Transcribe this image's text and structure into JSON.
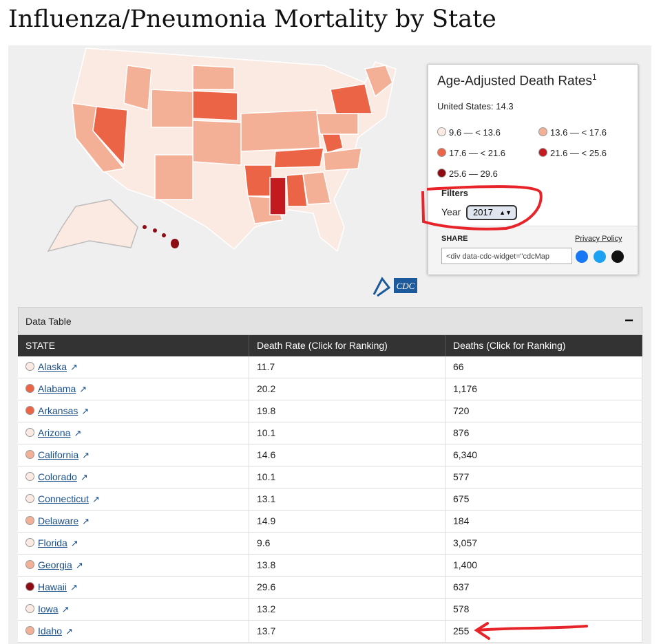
{
  "header": {
    "title": "Influenza/Pneumonia Mortality by State"
  },
  "legend": {
    "title": "Age-Adjusted Death Rates",
    "footnote": "1",
    "national": "United States: 14.3",
    "items": [
      {
        "label": "9.6 — < 13.6",
        "color": "#fbeae2"
      },
      {
        "label": "13.6 — < 17.6",
        "color": "#f3b096"
      },
      {
        "label": "17.6 — < 21.6",
        "color": "#ec6446"
      },
      {
        "label": "21.6 — < 25.6",
        "color": "#c21a1f"
      },
      {
        "label": "25.6 — 29.6",
        "color": "#8d0c14"
      }
    ]
  },
  "filters": {
    "title": "Filters",
    "year_label": "Year",
    "year": "2017"
  },
  "share": {
    "title": "SHARE",
    "privacy": "Privacy Policy",
    "embed": "<div data-cdc-widget=\"cdcMap"
  },
  "table": {
    "title": "Data Table",
    "toggle": "−",
    "columns": [
      "STATE",
      "Death Rate (Click for Ranking)",
      "Deaths (Click for Ranking)"
    ],
    "rows": [
      {
        "state": "Alaska",
        "rate": "11.7",
        "deaths": "66",
        "dot": "#fbeae2"
      },
      {
        "state": "Alabama",
        "rate": "20.2",
        "deaths": "1,176",
        "dot": "#ec6446"
      },
      {
        "state": "Arkansas",
        "rate": "19.8",
        "deaths": "720",
        "dot": "#ec6446"
      },
      {
        "state": "Arizona",
        "rate": "10.1",
        "deaths": "876",
        "dot": "#fbeae2"
      },
      {
        "state": "California",
        "rate": "14.6",
        "deaths": "6,340",
        "dot": "#f3b096"
      },
      {
        "state": "Colorado",
        "rate": "10.1",
        "deaths": "577",
        "dot": "#fbeae2"
      },
      {
        "state": "Connecticut",
        "rate": "13.1",
        "deaths": "675",
        "dot": "#fbeae2"
      },
      {
        "state": "Delaware",
        "rate": "14.9",
        "deaths": "184",
        "dot": "#f3b096"
      },
      {
        "state": "Florida",
        "rate": "9.6",
        "deaths": "3,057",
        "dot": "#fbeae2"
      },
      {
        "state": "Georgia",
        "rate": "13.8",
        "deaths": "1,400",
        "dot": "#f3b096"
      },
      {
        "state": "Hawaii",
        "rate": "29.6",
        "deaths": "637",
        "dot": "#8d0c14"
      },
      {
        "state": "Iowa",
        "rate": "13.2",
        "deaths": "578",
        "dot": "#fbeae2"
      },
      {
        "state": "Idaho",
        "rate": "13.7",
        "deaths": "255",
        "dot": "#f3b096"
      }
    ]
  }
}
